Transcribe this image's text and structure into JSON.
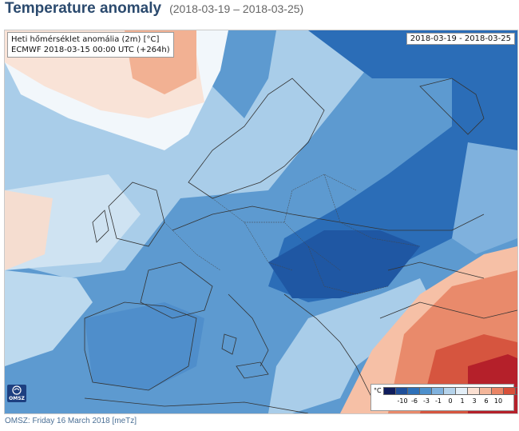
{
  "header": {
    "title": "Temperature anomaly",
    "date_range": "(2018-03-19 – 2018-03-25)"
  },
  "map": {
    "info_line1": "Heti hőmérséklet anomália (2m) [°C]",
    "info_line2": "ECMWF 2018-03-15 00:00 UTC (+264h)",
    "date_label": "2018-03-19 - 2018-03-25",
    "logo_text": "OMSZ"
  },
  "legend": {
    "unit": "°C",
    "colors": [
      "#0f1c5c",
      "#1f4f9a",
      "#2e70b8",
      "#4d90cc",
      "#7fb1dd",
      "#b5d3eb",
      "#e3eef7",
      "#fbe0d2",
      "#f4b69a",
      "#ea8566",
      "#d8503a",
      "#b5202a",
      "#7a0d1e"
    ],
    "ticks": [
      "-10",
      "-6",
      "-3",
      "-1",
      "0",
      "1",
      "3",
      "6",
      "10"
    ]
  },
  "footer": {
    "text": "OMSZ: Friday 16 March 2018  [meTz]"
  }
}
